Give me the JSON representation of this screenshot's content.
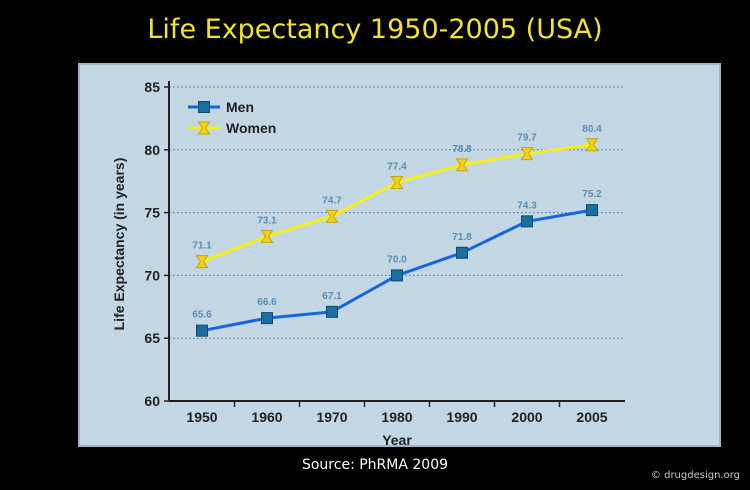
{
  "slide": {
    "title": "Life Expectancy 1950-2005  (USA)",
    "source": "Source: PhRMA 2009",
    "credit": "© drugdesign.org"
  },
  "colors": {
    "background": "#000000",
    "title": "#f2e32b",
    "panel": "#c4d7e5",
    "men": "#1565e0",
    "men_marker": "#1b6fa0",
    "women": "#f7ef1a",
    "women_marker": "#f5d21a",
    "label": "#5a8fb0"
  },
  "chart_data": {
    "type": "line",
    "title": "",
    "xlabel": "Year",
    "ylabel": "Life Expectancy (in years)",
    "categories": [
      "1950",
      "1960",
      "1970",
      "1980",
      "1990",
      "2000",
      "2005"
    ],
    "ylim": [
      60,
      85
    ],
    "yticks": [
      "60",
      "65",
      "70",
      "75",
      "80",
      "85"
    ],
    "grid": "horizontal dotted",
    "legend": "top-left",
    "series": [
      {
        "name": "Men",
        "values": [
          65.6,
          66.6,
          67.1,
          70.0,
          71.8,
          74.3,
          75.2
        ],
        "labels": [
          "65.6",
          "66.6",
          "67.1",
          "70.0",
          "71.8",
          "74.3",
          "75.2"
        ]
      },
      {
        "name": "Women",
        "values": [
          71.1,
          73.1,
          74.7,
          77.4,
          78.8,
          79.7,
          80.4
        ],
        "labels": [
          "71.1",
          "73.1",
          "74.7",
          "77.4",
          "78.8",
          "79.7",
          "80.4"
        ]
      }
    ]
  }
}
